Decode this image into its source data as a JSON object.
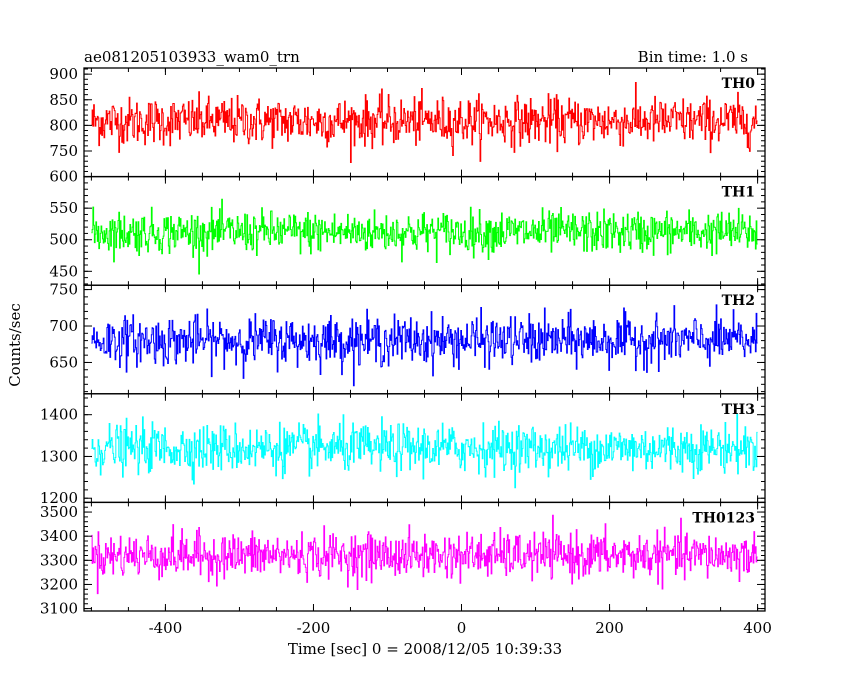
{
  "chart_data": {
    "type": "line",
    "title": "ae081205103933_wam0_trn",
    "bin_time": "Bin time: 1.0 s",
    "xlabel": "Time [sec] 0 = 2008/12/05 10:39:33",
    "ylabel": "Counts/sec",
    "xlim": [
      -510,
      410
    ],
    "x_ticks": [
      -400,
      -200,
      0,
      200,
      400
    ],
    "x_range": [
      -500,
      399
    ],
    "x_step": 1,
    "panels": [
      {
        "name": "TH0",
        "color": "#ff0000",
        "ylim": [
          700,
          912
        ],
        "yticks": [
          750,
          800,
          850,
          900
        ],
        "mean": 808,
        "amplitude": 42
      },
      {
        "name": "TH1",
        "color": "#00ff00",
        "ylim": [
          428,
          600
        ],
        "yticks": [
          450,
          500,
          550,
          600
        ],
        "mean": 512,
        "amplitude": 30
      },
      {
        "name": "TH2",
        "color": "#0000ff",
        "ylim": [
          607,
          756
        ],
        "yticks": [
          650,
          700,
          750
        ],
        "mean": 680,
        "amplitude": 30
      },
      {
        "name": "TH3",
        "color": "#00ffff",
        "ylim": [
          1190,
          1450
        ],
        "yticks": [
          1200,
          1300,
          1400
        ],
        "mean": 1320,
        "amplitude": 52
      },
      {
        "name": "TH0123",
        "color": "#ff00ff",
        "ylim": [
          3090,
          3540
        ],
        "yticks": [
          3100,
          3200,
          3300,
          3400,
          3500
        ],
        "mean": 3320,
        "amplitude": 85
      }
    ]
  }
}
